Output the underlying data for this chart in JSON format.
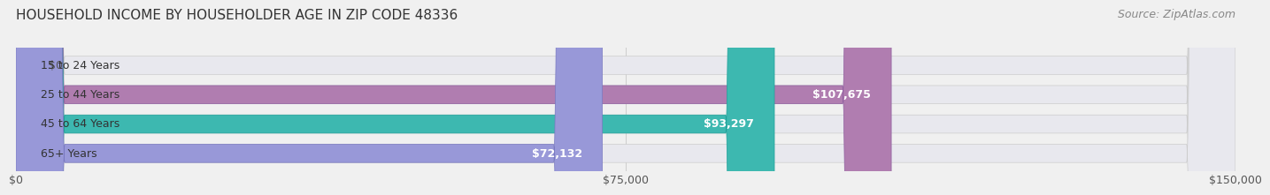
{
  "title": "HOUSEHOLD INCOME BY HOUSEHOLDER AGE IN ZIP CODE 48336",
  "source": "Source: ZipAtlas.com",
  "categories": [
    "15 to 24 Years",
    "25 to 44 Years",
    "45 to 64 Years",
    "65+ Years"
  ],
  "values": [
    0,
    107675,
    93297,
    72132
  ],
  "labels": [
    "$0",
    "$107,675",
    "$93,297",
    "$72,132"
  ],
  "bar_colors": [
    "#a8c8e8",
    "#b07db0",
    "#3db8b0",
    "#9898d8"
  ],
  "bar_edge_colors": [
    "#88aac8",
    "#9060a0",
    "#20a098",
    "#7878c0"
  ],
  "xlim": [
    0,
    150000
  ],
  "xticks": [
    0,
    75000,
    150000
  ],
  "xtick_labels": [
    "$0",
    "$75,000",
    "$150,000"
  ],
  "bg_color": "#f0f0f0",
  "bar_bg_color": "#e8e8ee",
  "title_fontsize": 11,
  "source_fontsize": 9,
  "label_fontsize": 9,
  "cat_fontsize": 9
}
